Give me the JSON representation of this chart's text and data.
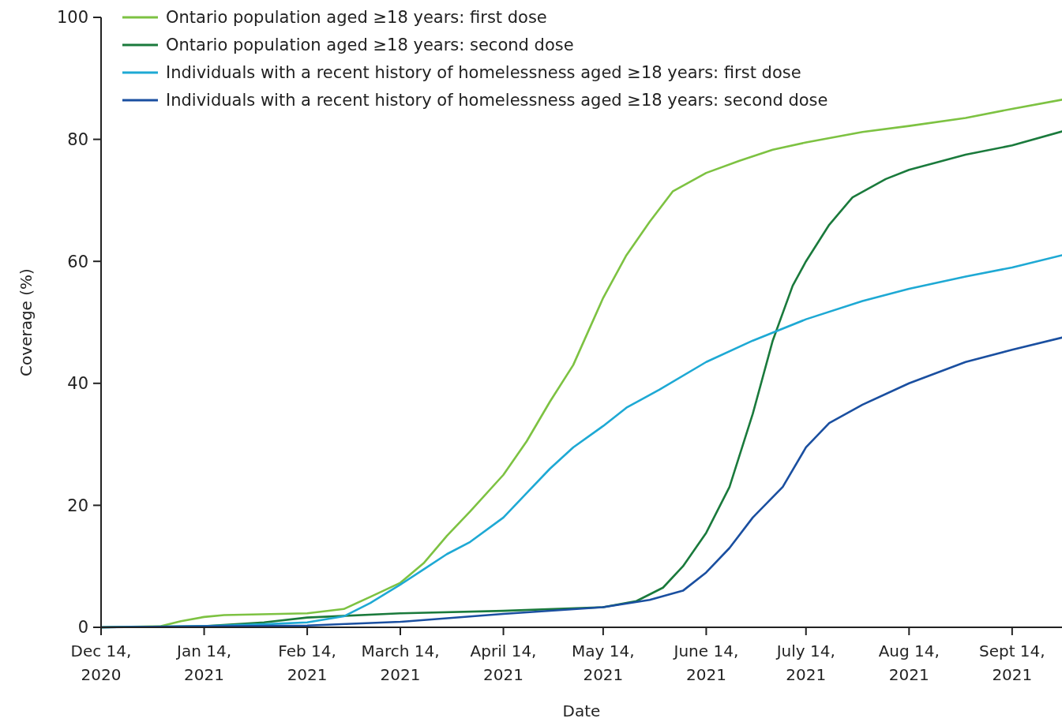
{
  "chart_data": {
    "type": "line",
    "xlabel": "Date",
    "ylabel": "Coverage (%)",
    "legend": "top left",
    "line_style": "solid",
    "marker": "none",
    "xlim": [
      "2020-12-14",
      "2021-09-29"
    ],
    "ylim": [
      0,
      100
    ],
    "yticks": [
      0,
      20,
      40,
      60,
      80,
      100
    ],
    "xticks": [
      {
        "value": "2020-12-14",
        "label": "Dec 14,\n2020"
      },
      {
        "value": "2021-01-14",
        "label": "Jan 14,\n2021"
      },
      {
        "value": "2021-02-14",
        "label": "Feb 14,\n2021"
      },
      {
        "value": "2021-03-14",
        "label": "March 14,\n2021"
      },
      {
        "value": "2021-04-14",
        "label": "April 14,\n2021"
      },
      {
        "value": "2021-05-14",
        "label": "May 14,\n2021"
      },
      {
        "value": "2021-06-14",
        "label": "June 14,\n2021"
      },
      {
        "value": "2021-07-14",
        "label": "July 14,\n2021"
      },
      {
        "value": "2021-08-14",
        "label": "Aug 14,\n2021"
      },
      {
        "value": "2021-09-14",
        "label": "Sept 14,\n2021"
      }
    ],
    "series": [
      {
        "name": "Ontario population aged ≥18 years: first dose",
        "color": "#7dc242",
        "x": [
          "2020-12-14",
          "2021-01-01",
          "2021-01-07",
          "2021-01-14",
          "2021-01-20",
          "2021-02-14",
          "2021-02-25",
          "2021-03-05",
          "2021-03-14",
          "2021-03-21",
          "2021-03-28",
          "2021-04-04",
          "2021-04-14",
          "2021-04-21",
          "2021-04-28",
          "2021-05-05",
          "2021-05-14",
          "2021-05-21",
          "2021-05-28",
          "2021-06-04",
          "2021-06-14",
          "2021-06-24",
          "2021-07-04",
          "2021-07-14",
          "2021-07-31",
          "2021-08-14",
          "2021-08-31",
          "2021-09-14",
          "2021-09-29"
        ],
        "values": [
          0,
          0.2,
          1,
          1.7,
          2,
          2.3,
          3,
          5,
          7.3,
          10.5,
          15,
          19,
          25,
          30.5,
          37,
          43,
          54,
          61,
          66.5,
          71.5,
          74.5,
          76.5,
          78.3,
          79.5,
          81.2,
          82.2,
          83.5,
          85,
          86.5
        ]
      },
      {
        "name": "Ontario population aged ≥18 years: second dose",
        "color": "#1a7a3c",
        "x": [
          "2020-12-14",
          "2021-01-14",
          "2021-02-01",
          "2021-02-14",
          "2021-03-14",
          "2021-04-14",
          "2021-05-14",
          "2021-05-24",
          "2021-06-01",
          "2021-06-07",
          "2021-06-14",
          "2021-06-21",
          "2021-06-28",
          "2021-07-04",
          "2021-07-10",
          "2021-07-14",
          "2021-07-21",
          "2021-07-28",
          "2021-08-07",
          "2021-08-14",
          "2021-08-31",
          "2021-09-14",
          "2021-09-29"
        ],
        "values": [
          0,
          0.2,
          0.8,
          1.6,
          2.3,
          2.7,
          3.3,
          4.3,
          6.5,
          10,
          15.5,
          23,
          35,
          47,
          56,
          60,
          66,
          70.5,
          73.5,
          75,
          77.5,
          79,
          81.3
        ]
      },
      {
        "name": "Individuals with a recent history of homelessness aged ≥18 years: first dose",
        "color": "#1ea9d4",
        "x": [
          "2020-12-14",
          "2021-01-14",
          "2021-02-01",
          "2021-02-14",
          "2021-02-25",
          "2021-03-05",
          "2021-03-14",
          "2021-03-21",
          "2021-03-28",
          "2021-04-04",
          "2021-04-14",
          "2021-04-21",
          "2021-04-28",
          "2021-05-05",
          "2021-05-14",
          "2021-05-21",
          "2021-05-31",
          "2021-06-14",
          "2021-06-28",
          "2021-07-14",
          "2021-07-31",
          "2021-08-14",
          "2021-08-31",
          "2021-09-14",
          "2021-09-29"
        ],
        "values": [
          0,
          0.2,
          0.5,
          0.8,
          1.8,
          4,
          7,
          9.5,
          12,
          14,
          18,
          22,
          26,
          29.5,
          33,
          36,
          39,
          43.5,
          47,
          50.5,
          53.5,
          55.5,
          57.5,
          59,
          61
        ]
      },
      {
        "name": "Individuals with a recent history of homelessness aged ≥18 years: second dose",
        "color": "#1a4fa0",
        "x": [
          "2020-12-14",
          "2021-02-14",
          "2021-03-14",
          "2021-04-14",
          "2021-05-14",
          "2021-05-28",
          "2021-06-07",
          "2021-06-14",
          "2021-06-21",
          "2021-06-28",
          "2021-07-07",
          "2021-07-14",
          "2021-07-21",
          "2021-07-31",
          "2021-08-14",
          "2021-08-31",
          "2021-09-14",
          "2021-09-29"
        ],
        "values": [
          0,
          0.3,
          0.9,
          2.2,
          3.3,
          4.5,
          6,
          9,
          13,
          18,
          23,
          29.5,
          33.5,
          36.5,
          40,
          43.5,
          45.5,
          47.5
        ]
      }
    ]
  }
}
